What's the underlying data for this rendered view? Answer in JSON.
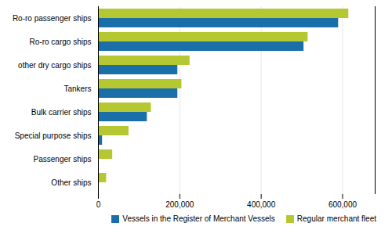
{
  "chart_data": {
    "type": "bar",
    "orientation": "horizontal",
    "categories": [
      "Ro-ro passenger ships",
      "Ro-ro cargo ships",
      "other dry cargo ships",
      "Tankers",
      "Bulk carrier ships",
      "Special purpose ships",
      "Passenger ships",
      "Other ships"
    ],
    "series": [
      {
        "name": "Vessels in the Register of Merchant Vessels",
        "color": "#1a6fa8",
        "values": [
          590000,
          505000,
          195000,
          195000,
          120000,
          10000,
          0,
          0
        ]
      },
      {
        "name": "Regular merchant fleet",
        "color": "#b5c832",
        "values": [
          615000,
          515000,
          225000,
          205000,
          130000,
          75000,
          35000,
          20000
        ]
      }
    ],
    "xlim": [
      0,
      680000
    ],
    "xticks": [
      0,
      {
        "value": 200000,
        "label": "200,000"
      },
      {
        "value": 400000,
        "label": "400,000"
      },
      {
        "value": 600000,
        "label": "600,000"
      }
    ],
    "grid": true,
    "legend": "lower right"
  }
}
